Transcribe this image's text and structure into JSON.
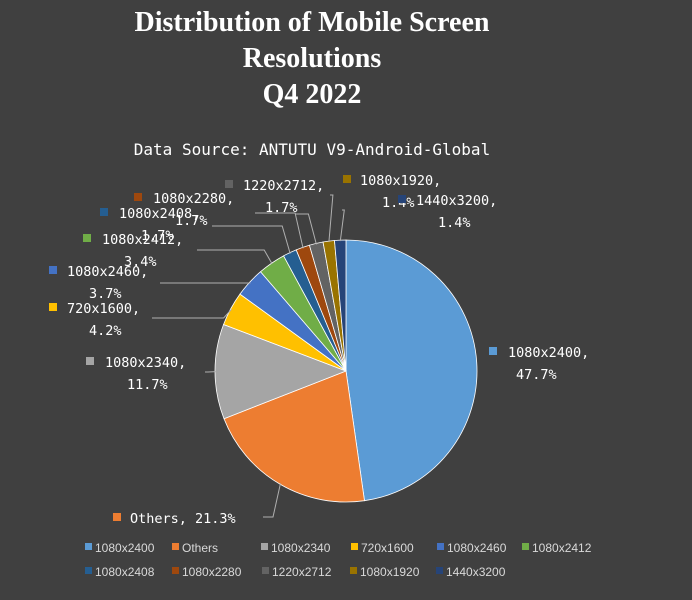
{
  "chart_data": {
    "type": "pie",
    "title_lines": [
      "Distribution of Mobile Screen",
      "Resolutions",
      "Q4 2022"
    ],
    "subtitle": "Data Source: ANTUTU V9-Android-Global",
    "slices": [
      {
        "label": "1080x2400",
        "value": 47.7,
        "value_label": "47.7%",
        "color": "#5B9BD5"
      },
      {
        "label": "Others",
        "value": 21.3,
        "value_label": "21.3%",
        "color": "#ED7D31"
      },
      {
        "label": "1080x2340",
        "value": 11.7,
        "value_label": "11.7%",
        "color": "#A5A5A5"
      },
      {
        "label": "720x1600",
        "value": 4.2,
        "value_label": "4.2%",
        "color": "#FFC000"
      },
      {
        "label": "1080x2460",
        "value": 3.7,
        "value_label": "3.7%",
        "color": "#4472C4"
      },
      {
        "label": "1080x2412",
        "value": 3.4,
        "value_label": "3.4%",
        "color": "#70AD47"
      },
      {
        "label": "1080x2408",
        "value": 1.7,
        "value_label": "1.7%",
        "color": "#255E91"
      },
      {
        "label": "1080x2280",
        "value": 1.7,
        "value_label": "1.7%",
        "color": "#9E480E"
      },
      {
        "label": "1220x2712",
        "value": 1.7,
        "value_label": "1.7%",
        "color": "#636363"
      },
      {
        "label": "1080x1920",
        "value": 1.4,
        "value_label": "1.4%",
        "color": "#997300"
      },
      {
        "label": "1440x3200",
        "value": 1.4,
        "value_label": "1.4%",
        "color": "#264478"
      }
    ],
    "legend_position": "bottom"
  }
}
